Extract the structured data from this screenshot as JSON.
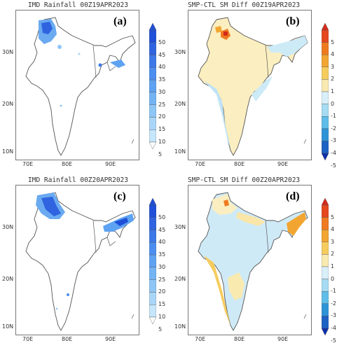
{
  "panels": [
    {
      "title": "IMD Rainfall 00Z19APR2023",
      "label": "(a)",
      "type": "rain"
    },
    {
      "title": "SMP-CTL SM Diff 00Z19APR2023",
      "label": "(b)",
      "type": "diff"
    },
    {
      "title": "IMD Rainfall 00Z20APR2023",
      "label": "(c)",
      "type": "rain"
    },
    {
      "title": "SMP-CTL SM Diff 00Z20APR2023",
      "label": "(d)",
      "type": "diff"
    }
  ],
  "axes": {
    "lat_ticks": [
      "30N",
      "20N",
      "10N"
    ],
    "lon_ticks": [
      "70E",
      "80E",
      "90E"
    ]
  },
  "colorbars": {
    "rain": {
      "levels": [
        "50",
        "45",
        "40",
        "35",
        "30",
        "25",
        "20",
        "15",
        "10",
        "5"
      ],
      "colors": [
        "#1f4fd8",
        "#2f63e0",
        "#3d78e8",
        "#4c8df0",
        "#5ea2f2",
        "#74b4f4",
        "#8ec6f6",
        "#a9d6f8",
        "#c6e6fb",
        "#e4f3fd"
      ]
    },
    "diff": {
      "levels": [
        "5",
        "4",
        "3",
        "2",
        "1",
        "0",
        "-1",
        "-2",
        "-3",
        "-4",
        "-5"
      ],
      "colors": [
        "#d42a1c",
        "#e6471d",
        "#ef7a1f",
        "#f2a631",
        "#f6cc5e",
        "#f9eab0",
        "#d9f0fb",
        "#a6dcf3",
        "#5fbde9",
        "#2e94d8",
        "#1c62c4",
        "#0d2fa8"
      ]
    }
  }
}
